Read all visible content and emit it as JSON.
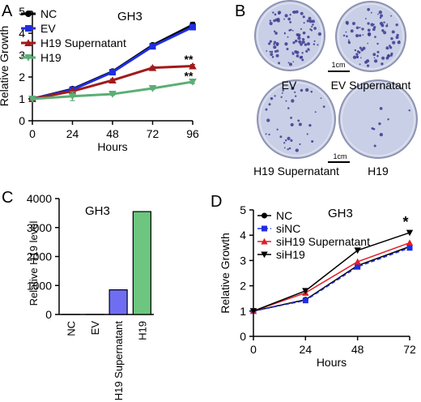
{
  "panels": {
    "A": {
      "letter": "A",
      "title": "GH3"
    },
    "B": {
      "letter": "B"
    },
    "C": {
      "letter": "C",
      "title": "GH3"
    },
    "D": {
      "letter": "D",
      "title": "GH3"
    }
  },
  "colors": {
    "black": "#000000",
    "blue": "#1f2ee0",
    "darkred": "#a01b1b",
    "green": "#5cae74",
    "red": "#e01f26",
    "bar_blue": "#6f6ef2",
    "bar_green": "#6cc67f",
    "dish_bg": "#c9cfe6",
    "colony": "#3b3a8f"
  },
  "chart_data": [
    {
      "type": "line",
      "panel": "A",
      "title": "GH3",
      "xlabel": "Hours",
      "ylabel": "Relative Growth",
      "x": [
        0,
        24,
        48,
        72,
        96
      ],
      "xlim": [
        0,
        96
      ],
      "ylim": [
        0,
        5
      ],
      "xticks": [
        "0",
        "24",
        "48",
        "72",
        "96"
      ],
      "yticks": [
        "0",
        "1",
        "2",
        "3",
        "4",
        "5"
      ],
      "series": [
        {
          "name": "NC",
          "color": "#000000",
          "marker": "circle",
          "values": [
            1.0,
            1.45,
            2.25,
            3.45,
            4.38
          ],
          "err": [
            0.05,
            0.06,
            0.06,
            0.08,
            0.12
          ]
        },
        {
          "name": "EV",
          "color": "#1f2ee0",
          "marker": "square",
          "values": [
            1.0,
            1.42,
            2.22,
            3.4,
            4.28
          ],
          "err": [
            0.05,
            0.06,
            0.06,
            0.08,
            0.12
          ]
        },
        {
          "name": "H19 Supernatant",
          "color": "#a01b1b",
          "marker": "triangle-up",
          "values": [
            1.0,
            1.35,
            1.85,
            2.42,
            2.5
          ],
          "err": [
            0.05,
            0.06,
            0.06,
            0.06,
            0.07
          ]
        },
        {
          "name": "H19",
          "color": "#5cae74",
          "marker": "triangle-down",
          "values": [
            1.0,
            1.12,
            1.22,
            1.48,
            1.78
          ],
          "err": [
            0.05,
            0.2,
            0.06,
            0.06,
            0.08
          ]
        }
      ],
      "annotations": [
        {
          "text": "**",
          "x": 96,
          "y": 2.85
        },
        {
          "text": "**",
          "x": 96,
          "y": 2.1
        }
      ]
    },
    {
      "type": "bar",
      "panel": "C",
      "title": "GH3",
      "ylabel": "Relative H19 level",
      "categories": [
        "NC",
        "EV",
        "H19 Supernatant",
        "H19"
      ],
      "values": [
        1,
        1,
        850,
        3550
      ],
      "colors": [
        "#ffffff",
        "#ffffff",
        "#6f6ef2",
        "#6cc67f"
      ],
      "ylim": [
        0,
        4000
      ],
      "yticks": [
        "0",
        "1000",
        "2000",
        "3000",
        "4000"
      ]
    },
    {
      "type": "line",
      "panel": "D",
      "title": "GH3",
      "xlabel": "Hours",
      "ylabel": "Relative Growth",
      "x": [
        0,
        24,
        48,
        72
      ],
      "xlim": [
        0,
        72
      ],
      "ylim": [
        0,
        5
      ],
      "xticks": [
        "0",
        "24",
        "48",
        "72"
      ],
      "yticks": [
        "0",
        "1",
        "2",
        "3",
        "4",
        "5"
      ],
      "series": [
        {
          "name": "NC",
          "color": "#000000",
          "marker": "circle",
          "dash": false,
          "values": [
            1.0,
            1.45,
            2.8,
            3.55
          ]
        },
        {
          "name": "siNC",
          "color": "#1f2ee0",
          "marker": "square",
          "dash": true,
          "values": [
            1.0,
            1.42,
            2.75,
            3.5
          ]
        },
        {
          "name": "siH19 Supernatant",
          "color": "#e01f26",
          "marker": "triangle-up",
          "dash": false,
          "values": [
            1.0,
            1.72,
            2.95,
            3.7
          ]
        },
        {
          "name": "siH19",
          "color": "#000000",
          "marker": "triangle-down",
          "dash": false,
          "values": [
            1.0,
            1.8,
            3.4,
            4.1
          ]
        }
      ],
      "annotations": [
        {
          "text": "*",
          "x": 72,
          "y": 4.65
        }
      ]
    }
  ],
  "colony_panel": {
    "dish_labels": [
      "EV",
      "EV Supernatant",
      "H19 Supernatant",
      "H19"
    ],
    "scalebar_labels": [
      "1cm",
      "1cm"
    ]
  }
}
